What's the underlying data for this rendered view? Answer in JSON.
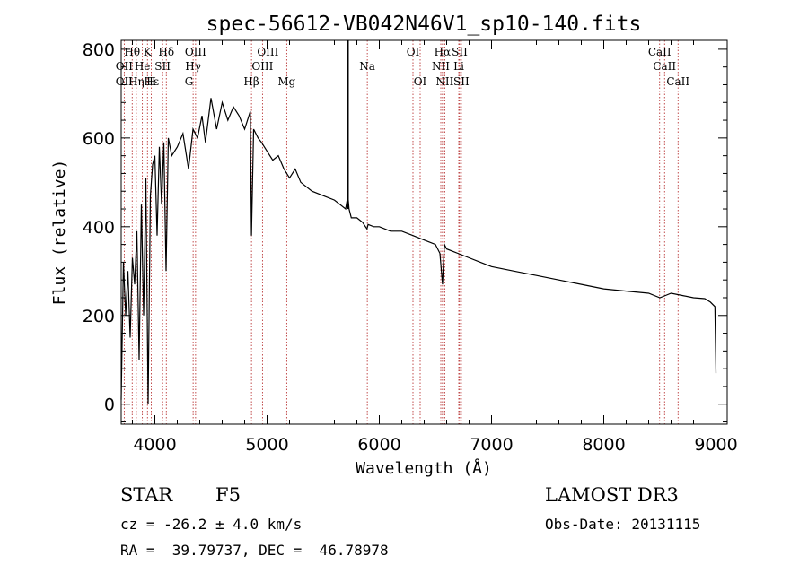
{
  "chart_data": {
    "type": "line",
    "title": "spec-56612-VB042N46V1_sp10-140.fits",
    "xlabel": "Wavelength (Å)",
    "ylabel": "Flux (relative)",
    "xlim": [
      3700,
      9100
    ],
    "ylim": [
      -45,
      820
    ],
    "xticks": [
      4000,
      5000,
      6000,
      7000,
      8000,
      9000
    ],
    "yticks": [
      0,
      200,
      400,
      600,
      800
    ],
    "series": [
      {
        "name": "spectrum",
        "x": [
          3700,
          3720,
          3740,
          3760,
          3780,
          3800,
          3820,
          3840,
          3860,
          3880,
          3900,
          3920,
          3940,
          3960,
          3980,
          4000,
          4020,
          4040,
          4060,
          4080,
          4100,
          4120,
          4150,
          4200,
          4250,
          4300,
          4340,
          4380,
          4420,
          4450,
          4500,
          4550,
          4600,
          4650,
          4700,
          4750,
          4800,
          4850,
          4861,
          4880,
          4920,
          4950,
          5000,
          5050,
          5100,
          5150,
          5200,
          5250,
          5300,
          5400,
          5500,
          5600,
          5700,
          5720,
          5730,
          5750,
          5800,
          5850,
          5890,
          5900,
          5950,
          6000,
          6100,
          6200,
          6300,
          6400,
          6500,
          6540,
          6563,
          6580,
          6600,
          6700,
          6800,
          6900,
          7000,
          7200,
          7400,
          7600,
          7800,
          8000,
          8200,
          8400,
          8500,
          8550,
          8600,
          8700,
          8800,
          8900,
          8950,
          8990,
          9000
        ],
        "values": [
          10,
          320,
          200,
          300,
          150,
          330,
          270,
          390,
          100,
          450,
          200,
          510,
          0,
          470,
          540,
          560,
          380,
          580,
          450,
          590,
          300,
          600,
          560,
          580,
          610,
          530,
          620,
          600,
          650,
          590,
          690,
          620,
          680,
          640,
          670,
          650,
          620,
          660,
          380,
          620,
          600,
          590,
          570,
          550,
          560,
          530,
          510,
          530,
          500,
          480,
          470,
          460,
          440,
          470,
          440,
          420,
          420,
          410,
          395,
          405,
          400,
          400,
          390,
          390,
          380,
          370,
          360,
          340,
          270,
          360,
          350,
          340,
          330,
          320,
          310,
          300,
          290,
          280,
          270,
          260,
          255,
          250,
          240,
          245,
          250,
          245,
          240,
          238,
          230,
          220,
          70
        ]
      }
    ],
    "annotations": [
      {
        "label": "Hθ",
        "x": 3798,
        "row": 1
      },
      {
        "label": "K",
        "x": 3934,
        "row": 1
      },
      {
        "label": "Hδ",
        "x": 4102,
        "row": 1
      },
      {
        "label": "OIII",
        "x": 4363,
        "row": 1
      },
      {
        "label": "OIII",
        "x": 5007,
        "row": 1
      },
      {
        "label": "OI",
        "x": 6300,
        "row": 1
      },
      {
        "label": "Hα",
        "x": 6563,
        "row": 1
      },
      {
        "label": "SII",
        "x": 6716,
        "row": 1
      },
      {
        "label": "CaII",
        "x": 8498,
        "row": 1
      },
      {
        "label": "OII",
        "x": 3727,
        "row": 2
      },
      {
        "label": "He",
        "x": 3889,
        "row": 2
      },
      {
        "label": "SII",
        "x": 4069,
        "row": 2
      },
      {
        "label": "Hγ",
        "x": 4341,
        "row": 2
      },
      {
        "label": "OIII",
        "x": 4959,
        "row": 2
      },
      {
        "label": "Na",
        "x": 5893,
        "row": 2
      },
      {
        "label": "NII",
        "x": 6548,
        "row": 2
      },
      {
        "label": "Li",
        "x": 6708,
        "row": 2
      },
      {
        "label": "CaII",
        "x": 8542,
        "row": 2
      },
      {
        "label": "OII",
        "x": 3727,
        "row": 3
      },
      {
        "label": "Hε",
        "x": 3970,
        "row": 3
      },
      {
        "label": "Hη",
        "x": 3835,
        "row": 3
      },
      {
        "label": "H",
        "x": 3968,
        "row": 3
      },
      {
        "label": "G",
        "x": 4304,
        "row": 3
      },
      {
        "label": "Hβ",
        "x": 4861,
        "row": 3
      },
      {
        "label": "Mg",
        "x": 5175,
        "row": 3
      },
      {
        "label": "OI",
        "x": 6364,
        "row": 3
      },
      {
        "label": "NII",
        "x": 6583,
        "row": 3
      },
      {
        "label": "SII",
        "x": 6731,
        "row": 3
      },
      {
        "label": "CaII",
        "x": 8662,
        "row": 3
      }
    ],
    "line_marks_x": [
      3727,
      3798,
      3835,
      3889,
      3934,
      3968,
      4069,
      4102,
      4304,
      4341,
      4363,
      4861,
      4959,
      5007,
      5175,
      5893,
      6300,
      6364,
      6548,
      6563,
      6583,
      6708,
      6716,
      6731,
      8498,
      8542,
      8662
    ],
    "gap_marker_x": 5720
  },
  "info": {
    "class": "STAR",
    "subclass": "F5",
    "survey": "LAMOST DR3",
    "cz": "cz = -26.2 ± 4.0 km/s",
    "obsdate": "Obs-Date: 20131115",
    "coords": "RA =  39.79737, DEC =  46.78978"
  }
}
